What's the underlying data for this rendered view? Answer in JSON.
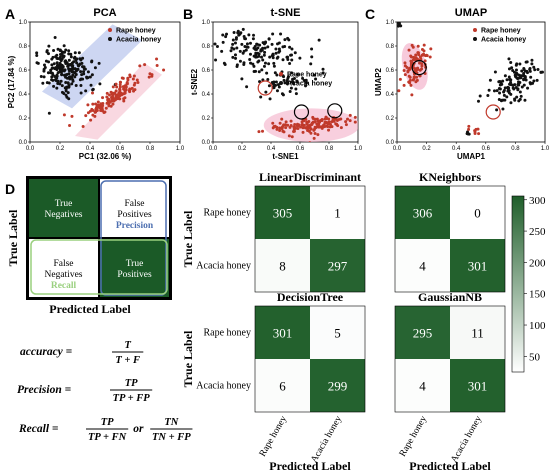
{
  "panel_letters": [
    "A",
    "B",
    "C",
    "D"
  ],
  "colors": {
    "rape": "#c0392b",
    "acacia": "#111111",
    "pca_band": "#bcc8ee",
    "pca_pink": "#f4b8c8",
    "highlight_pink": "#f2a7c3",
    "cm_dark": "#1f5e2a",
    "cm_light": "#ffffff",
    "explain_dark": "#1b5a27",
    "precision_blue": "#4d6fb0",
    "recall_green": "#9ad07f"
  },
  "chart_data": [
    {
      "type": "scatter",
      "title": "PCA",
      "xlabel": "PC1 (32.06 %)",
      "ylabel": "PC2 (17.84 %)",
      "xlim": [
        0.0,
        1.0
      ],
      "ylim": [
        0.0,
        1.0
      ],
      "xticks": [
        "0.0",
        "0.2",
        "0.4",
        "0.6",
        "0.8",
        "1.0"
      ],
      "yticks": [
        "0.0",
        "0.2",
        "0.4",
        "0.6",
        "0.8",
        "1.0"
      ],
      "legend": [
        "Rape honey",
        "Acacia honey"
      ],
      "legend_position": "top-right"
    },
    {
      "type": "scatter",
      "title": "t-SNE",
      "xlabel": "t-SNE1",
      "ylabel": "t-SNE2",
      "xlim": [
        0.0,
        1.0
      ],
      "ylim": [
        0.0,
        1.0
      ],
      "xticks": [
        "0.0",
        "0.2",
        "0.4",
        "0.6",
        "0.8",
        "1.0"
      ],
      "yticks": [
        "0.0",
        "0.2",
        "0.4",
        "0.6",
        "0.8",
        "1.0"
      ],
      "legend": [
        "Rape honey",
        "Acacia honey"
      ],
      "legend_position": "center-right"
    },
    {
      "type": "scatter",
      "title": "UMAP",
      "xlabel": "UMAP1",
      "ylabel": "UMAP2",
      "xlim": [
        0.0,
        1.0
      ],
      "ylim": [
        0.0,
        1.0
      ],
      "xticks": [
        "0.0",
        "0.2",
        "0.4",
        "0.6",
        "0.8",
        "1.0"
      ],
      "yticks": [
        "0.0",
        "0.2",
        "0.4",
        "0.6",
        "0.8",
        "1.0"
      ],
      "legend": [
        "Rape honey",
        "Acacia honey"
      ],
      "legend_position": "top-right"
    },
    {
      "type": "heatmap",
      "title": "LinearDiscriminant",
      "rows": [
        "Rape honey",
        "Acacia honey"
      ],
      "cols": [
        "Rape honey",
        "Acacia honey"
      ],
      "values": [
        [
          305,
          1
        ],
        [
          8,
          297
        ]
      ]
    },
    {
      "type": "heatmap",
      "title": "KNeighbors",
      "rows": [
        "Rape honey",
        "Acacia honey"
      ],
      "cols": [
        "Rape honey",
        "Acacia honey"
      ],
      "values": [
        [
          306,
          0
        ],
        [
          4,
          301
        ]
      ]
    },
    {
      "type": "heatmap",
      "title": "DecisionTree",
      "rows": [
        "Rape honey",
        "Acacia honey"
      ],
      "cols": [
        "Rape honey",
        "Acacia honey"
      ],
      "values": [
        [
          301,
          5
        ],
        [
          6,
          299
        ]
      ]
    },
    {
      "type": "heatmap",
      "title": "GaussianNB",
      "rows": [
        "Rape honey",
        "Acacia honey"
      ],
      "cols": [
        "Rape honey",
        "Acacia honey"
      ],
      "values": [
        [
          295,
          11
        ],
        [
          4,
          301
        ]
      ]
    }
  ],
  "cm_ylabel": "True Label",
  "cm_xlabel": "Predicted Label",
  "colorbar": {
    "ticks": [
      50,
      100,
      150,
      200,
      250,
      300
    ],
    "range": [
      0,
      306
    ]
  },
  "explain": {
    "cells": [
      "True Negatives",
      "False Positives",
      "False Negatives",
      "True Positives"
    ],
    "precision": "Precision",
    "recall": "Recall",
    "ylabel": "True Label",
    "xlabel": "Predicted Label"
  },
  "formulas": {
    "accuracy": {
      "lhs": "accuracy =",
      "num": "T",
      "den": "T + F"
    },
    "precision": {
      "lhs": "Precision =",
      "num": "TP",
      "den": "TP + FP"
    },
    "recall": {
      "lhs": "Recall =",
      "num1": "TP",
      "den1": "TP + FN",
      "or": "or",
      "num2": "TN",
      "den2": "TN + FP"
    }
  }
}
